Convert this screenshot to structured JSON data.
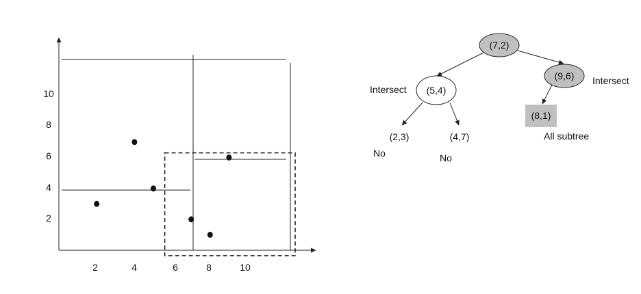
{
  "plot": {
    "x_tick_labels": [
      "2",
      "4",
      "6",
      "8",
      "10"
    ],
    "y_tick_labels": [
      "2",
      "4",
      "6",
      "8",
      "10"
    ],
    "points": [
      {
        "x": 2,
        "y": 3
      },
      {
        "x": 4,
        "y": 7
      },
      {
        "x": 5,
        "y": 4
      },
      {
        "x": 7,
        "y": 2
      },
      {
        "x": 8,
        "y": 1
      },
      {
        "x": 9,
        "y": 6
      }
    ],
    "query_region": {
      "x": [
        5.6,
        12.5
      ],
      "y": [
        -0.35,
        6.3
      ]
    }
  },
  "tree": {
    "root": {
      "label": "(7,2)",
      "fill": "#c0c0c0"
    },
    "left": {
      "label": "(5,4)",
      "fill": "#ffffff",
      "status": "Intersect"
    },
    "right": {
      "label": "(9,6)",
      "fill": "#c0c0c0",
      "status": "Intersect"
    },
    "left_left": {
      "label": "(2,3)",
      "status": "No"
    },
    "left_right": {
      "label": "(4,7)",
      "status": "No"
    },
    "right_left": {
      "label": "(8,1)",
      "fill": "#c0c0c0",
      "status": "All subtree"
    }
  }
}
